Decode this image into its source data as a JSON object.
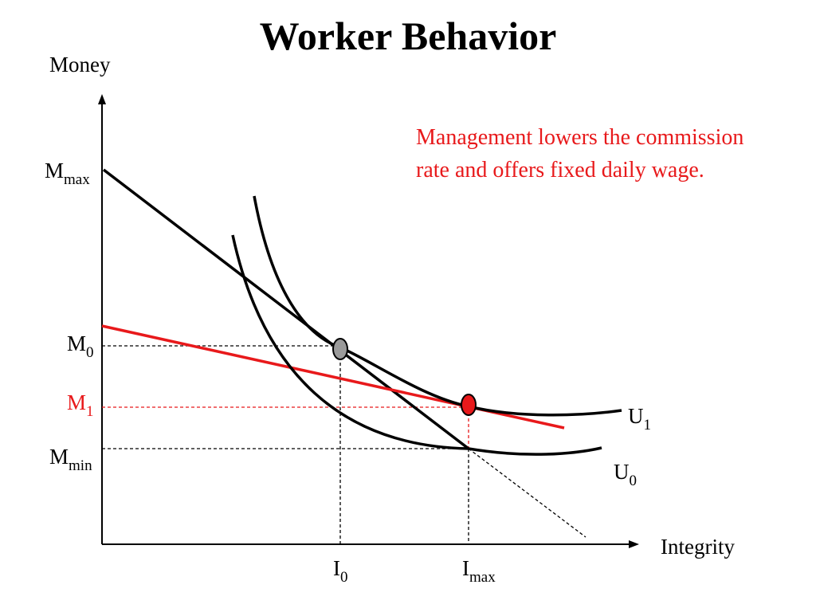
{
  "title": "Worker Behavior",
  "axes": {
    "y_label": "Money",
    "x_label": "Integrity"
  },
  "y_ticks": {
    "m_max": {
      "main": "M",
      "sub": "max"
    },
    "m0": {
      "main": "M",
      "sub": "0"
    },
    "m1": {
      "main": "M",
      "sub": "1"
    },
    "m_min": {
      "main": "M",
      "sub": "min"
    }
  },
  "x_ticks": {
    "i0": {
      "main": "I",
      "sub": "0"
    },
    "i_max": {
      "main": "I",
      "sub": "max"
    }
  },
  "curves": {
    "u1": {
      "main": "U",
      "sub": "1"
    },
    "u0": {
      "main": "U",
      "sub": "0"
    }
  },
  "annotation": "Management lowers the commission rate and offers fixed daily wage.",
  "colors": {
    "ink": "#000000",
    "highlight": "#e8191b",
    "point_original": "#9a9a9a",
    "point_new": "#e8191b"
  }
}
